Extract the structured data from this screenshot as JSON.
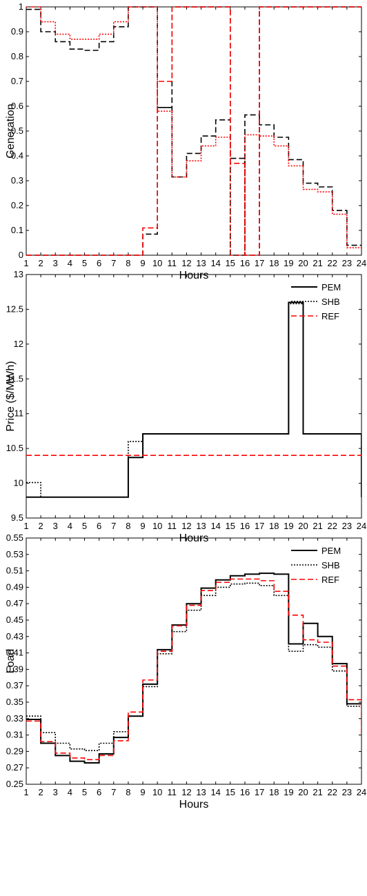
{
  "chart_data": [
    {
      "type": "line",
      "step": true,
      "xlabel": "Hours",
      "ylabel": "Generation",
      "xlim": [
        1,
        24
      ],
      "ylim": [
        0,
        1
      ],
      "x_ticks": [
        1,
        2,
        3,
        4,
        5,
        6,
        7,
        8,
        9,
        10,
        11,
        12,
        13,
        14,
        15,
        16,
        17,
        18,
        19,
        20,
        21,
        22,
        23,
        24
      ],
      "y_ticks": [
        0,
        0.1,
        0.2,
        0.3,
        0.4,
        0.5,
        0.6,
        0.7,
        0.8,
        0.9,
        1
      ],
      "y_tick_labels": [
        "0",
        "0.1",
        "0.2",
        "0.3",
        "0.4",
        "0.5",
        "0.6",
        "0.7",
        "0.8",
        "0.9",
        "1"
      ],
      "grid": false,
      "legend": null,
      "series": [
        {
          "color": "#000000",
          "dash": "dashed",
          "values": [
            0.99,
            0.9,
            0.86,
            0.83,
            0.825,
            0.86,
            0.92,
            1.0,
            1.0,
            0.595,
            0.315,
            0.41,
            0.48,
            0.545,
            0.0,
            0.565,
            0.525,
            0.475,
            0.385,
            0.29,
            0.275,
            0.18,
            0.04,
            0.04
          ]
        },
        {
          "color": "#ff0000",
          "dash": "dotted",
          "values": [
            1.0,
            0.94,
            0.89,
            0.87,
            0.87,
            0.89,
            0.94,
            1.0,
            1.0,
            0.58,
            0.315,
            0.38,
            0.44,
            0.475,
            0.0,
            0.485,
            0.48,
            0.44,
            0.36,
            0.265,
            0.255,
            0.165,
            0.03,
            0.03
          ]
        },
        {
          "color": "#000000",
          "dash": "dashed",
          "values": [
            0,
            0,
            0,
            0,
            0,
            0,
            0,
            0,
            0.085,
            0.595,
            1.0,
            1.0,
            1.0,
            1.0,
            0.39,
            0.0,
            1.0,
            1.0,
            1.0,
            1.0,
            1.0,
            1.0,
            1.0,
            1.0
          ]
        },
        {
          "color": "#ff0000",
          "dash": "dashed",
          "values": [
            0,
            0,
            0,
            0,
            0,
            0,
            0,
            0,
            0.11,
            0.7,
            1.0,
            1.0,
            1.0,
            1.0,
            0.37,
            0.0,
            1.0,
            1.0,
            1.0,
            1.0,
            1.0,
            1.0,
            1.0,
            0.98
          ]
        }
      ]
    },
    {
      "type": "line",
      "step": true,
      "xlabel": "Hours",
      "ylabel": "Price ($/MWh)",
      "xlim": [
        1,
        24
      ],
      "ylim": [
        9.5,
        13
      ],
      "x_ticks": [
        1,
        2,
        3,
        4,
        5,
        6,
        7,
        8,
        9,
        10,
        11,
        12,
        13,
        14,
        15,
        16,
        17,
        18,
        19,
        20,
        21,
        22,
        23,
        24
      ],
      "y_ticks": [
        9.5,
        10,
        10.5,
        11,
        11.5,
        12,
        12.5,
        13
      ],
      "y_tick_labels": [
        "9.5",
        "10",
        "10.5",
        "11",
        "11.5",
        "12",
        "12.5",
        "13"
      ],
      "grid": false,
      "legend": "top-right",
      "series": [
        {
          "name": "PEM",
          "color": "#000000",
          "dash": "solid",
          "values": [
            9.8,
            9.8,
            9.8,
            9.8,
            9.8,
            9.8,
            9.8,
            10.37,
            10.71,
            10.71,
            10.71,
            10.71,
            10.71,
            10.71,
            10.71,
            10.71,
            10.71,
            10.71,
            12.6,
            10.71,
            10.71,
            10.71,
            10.71,
            9.8
          ]
        },
        {
          "name": "SHB",
          "color": "#000000",
          "dash": "dotted",
          "values": [
            10.01,
            9.8,
            9.8,
            9.8,
            9.8,
            9.8,
            9.8,
            10.6,
            10.71,
            10.71,
            10.71,
            10.71,
            10.71,
            10.71,
            10.71,
            10.71,
            10.71,
            10.71,
            12.58,
            10.71,
            10.71,
            10.71,
            10.71,
            9.8
          ]
        },
        {
          "name": "REF",
          "color": "#ff0000",
          "dash": "dashed",
          "values": [
            10.4,
            10.4,
            10.4,
            10.4,
            10.4,
            10.4,
            10.4,
            10.4,
            10.4,
            10.4,
            10.4,
            10.4,
            10.4,
            10.4,
            10.4,
            10.4,
            10.4,
            10.4,
            10.4,
            10.4,
            10.4,
            10.4,
            10.4,
            10.4
          ]
        }
      ]
    },
    {
      "type": "line",
      "step": true,
      "xlabel": "Hours",
      "ylabel": "Load",
      "xlim": [
        1,
        24
      ],
      "ylim": [
        0.25,
        0.55
      ],
      "x_ticks": [
        1,
        2,
        3,
        4,
        5,
        6,
        7,
        8,
        9,
        10,
        11,
        12,
        13,
        14,
        15,
        16,
        17,
        18,
        19,
        20,
        21,
        22,
        23,
        24
      ],
      "y_ticks": [
        0.25,
        0.27,
        0.29,
        0.31,
        0.33,
        0.35,
        0.37,
        0.39,
        0.41,
        0.43,
        0.45,
        0.47,
        0.49,
        0.51,
        0.53,
        0.55
      ],
      "y_tick_labels": [
        "0.25",
        "0.27",
        "0.29",
        "0.31",
        "0.33",
        "0.35",
        "0.37",
        "0.39",
        "0.41",
        "0.43",
        "0.45",
        "0.47",
        "0.49",
        "0.51",
        "0.53",
        "0.55"
      ],
      "grid": false,
      "legend": "top-right",
      "series": [
        {
          "name": "PEM",
          "color": "#000000",
          "dash": "solid",
          "values": [
            0.329,
            0.3,
            0.285,
            0.278,
            0.276,
            0.287,
            0.307,
            0.333,
            0.372,
            0.414,
            0.444,
            0.47,
            0.489,
            0.499,
            0.504,
            0.506,
            0.507,
            0.506,
            0.421,
            0.446,
            0.43,
            0.397,
            0.348,
            0.348
          ]
        },
        {
          "name": "SHB",
          "color": "#000000",
          "dash": "dotted",
          "values": [
            0.333,
            0.313,
            0.3,
            0.293,
            0.291,
            0.3,
            0.314,
            0.333,
            0.369,
            0.409,
            0.436,
            0.462,
            0.48,
            0.49,
            0.494,
            0.495,
            0.492,
            0.48,
            0.412,
            0.42,
            0.417,
            0.388,
            0.345,
            0.345
          ]
        },
        {
          "name": "REF",
          "color": "#ff0000",
          "dash": "dashed",
          "values": [
            0.327,
            0.302,
            0.288,
            0.282,
            0.28,
            0.285,
            0.303,
            0.338,
            0.377,
            0.412,
            0.443,
            0.468,
            0.486,
            0.496,
            0.5,
            0.5,
            0.498,
            0.485,
            0.456,
            0.426,
            0.423,
            0.394,
            0.353,
            0.31
          ]
        }
      ]
    }
  ]
}
